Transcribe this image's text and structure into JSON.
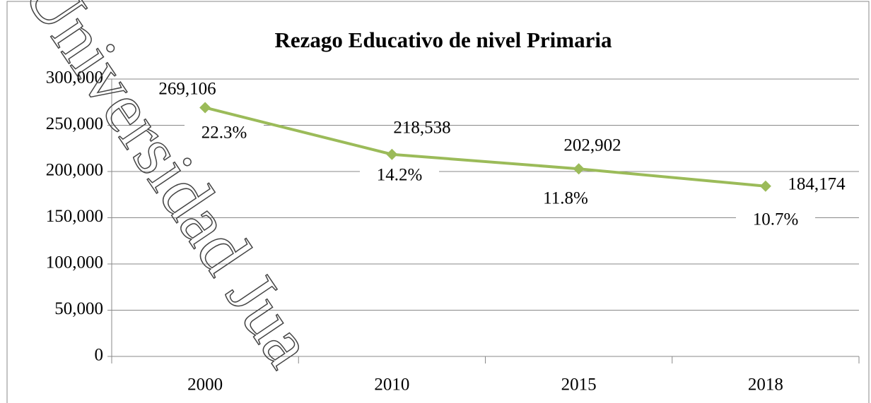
{
  "chart_data": {
    "type": "line",
    "title": "Rezago Educativo de nivel  Primaria",
    "categories": [
      "2000",
      "2010",
      "2015",
      "2018"
    ],
    "series": [
      {
        "name": "Rezago",
        "color": "#9bbb59",
        "values": [
          269106,
          218538,
          202902,
          184174
        ],
        "value_labels": [
          "269,106",
          "218,538",
          "202,902",
          "184,174"
        ]
      }
    ],
    "annotations": [
      "22.3%",
      "14.2%",
      "11.8%",
      "10.7%"
    ],
    "ylim": [
      0,
      300000
    ],
    "yticks": [
      0,
      {
        "value": 50000,
        "label": "50,000"
      },
      {
        "value": 100000,
        "label": "100,000"
      },
      {
        "value": 150000,
        "label": "150,000"
      },
      {
        "value": 200000,
        "label": "200,000"
      },
      {
        "value": 250000,
        "label": "250,000"
      },
      {
        "value": 300000,
        "label": "300,000"
      }
    ],
    "grid": true
  },
  "watermark": "Universidad Jua"
}
